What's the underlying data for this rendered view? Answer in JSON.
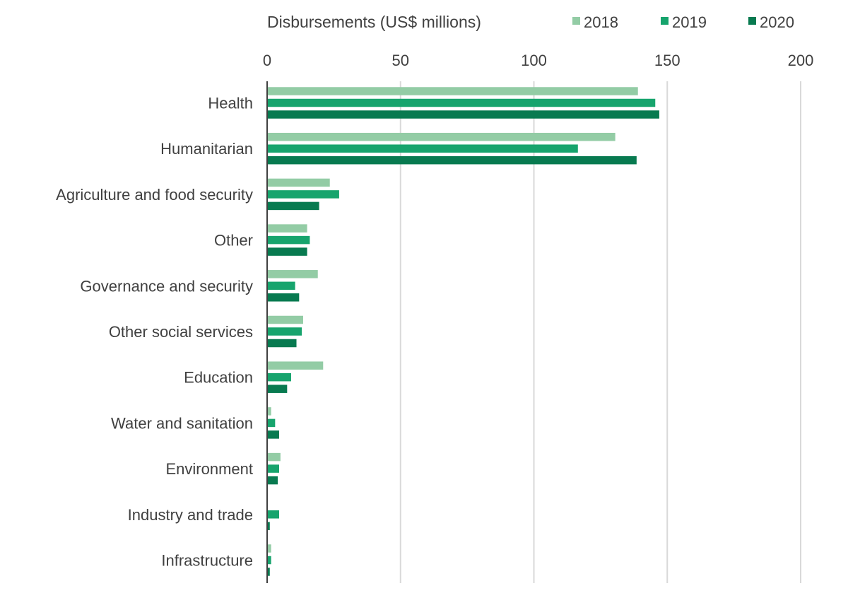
{
  "chart_data": {
    "type": "bar",
    "orientation": "horizontal",
    "title": "Disbursements (US$ millions)",
    "xlim": [
      0,
      200
    ],
    "ticks": [
      0,
      50,
      100,
      150,
      200
    ],
    "grid": "vertical",
    "legend_position": "top-right",
    "categories": [
      "Health",
      "Humanitarian",
      "Agriculture and food security",
      "Other",
      "Governance and security",
      "Other social services",
      "Education",
      "Water and sanitation",
      "Environment",
      "Industry and trade",
      "Infrastructure"
    ],
    "series": [
      {
        "name": "2018",
        "color": "#93cca5",
        "values": [
          139,
          130.5,
          23.5,
          15,
          19,
          13.5,
          21,
          1.5,
          5,
          0,
          1.5
        ]
      },
      {
        "name": "2019",
        "color": "#17a46d",
        "values": [
          145.5,
          116.5,
          27,
          16,
          10.5,
          13,
          9,
          3,
          4.5,
          4.5,
          1.5
        ]
      },
      {
        "name": "2020",
        "color": "#087a50",
        "values": [
          147,
          138.5,
          19.5,
          15,
          12,
          11,
          7.5,
          4.5,
          4,
          1,
          1
        ]
      }
    ]
  }
}
